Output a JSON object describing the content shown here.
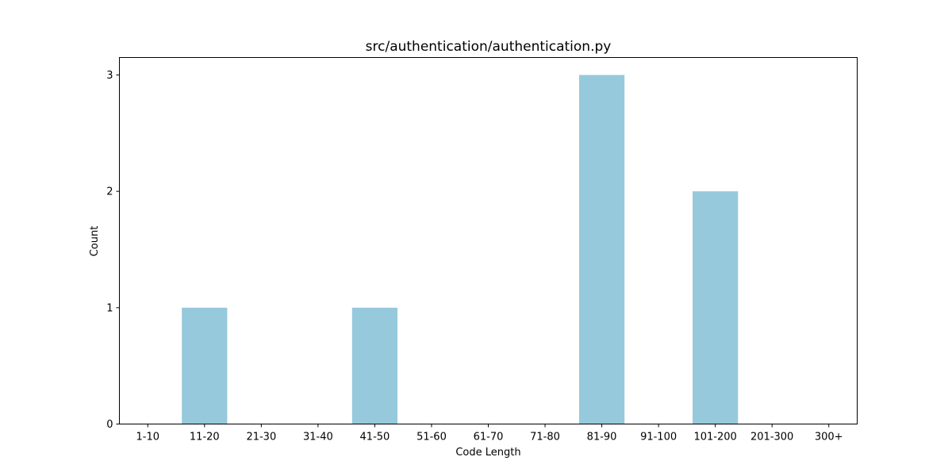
{
  "chart_data": {
    "type": "bar",
    "title": "src/authentication/authentication.py",
    "xlabel": "Code Length",
    "ylabel": "Count",
    "categories": [
      "1-10",
      "11-20",
      "21-30",
      "31-40",
      "41-50",
      "51-60",
      "61-70",
      "71-80",
      "81-90",
      "91-100",
      "101-200",
      "201-300",
      "300+"
    ],
    "values": [
      0,
      1,
      0,
      0,
      1,
      0,
      0,
      0,
      3,
      0,
      2,
      0,
      0
    ],
    "ylim": [
      0,
      3.15
    ],
    "yticks": [
      "0",
      "1",
      "2",
      "3"
    ],
    "bar_color": "#96c9dc",
    "grid": false,
    "legend": "none"
  }
}
